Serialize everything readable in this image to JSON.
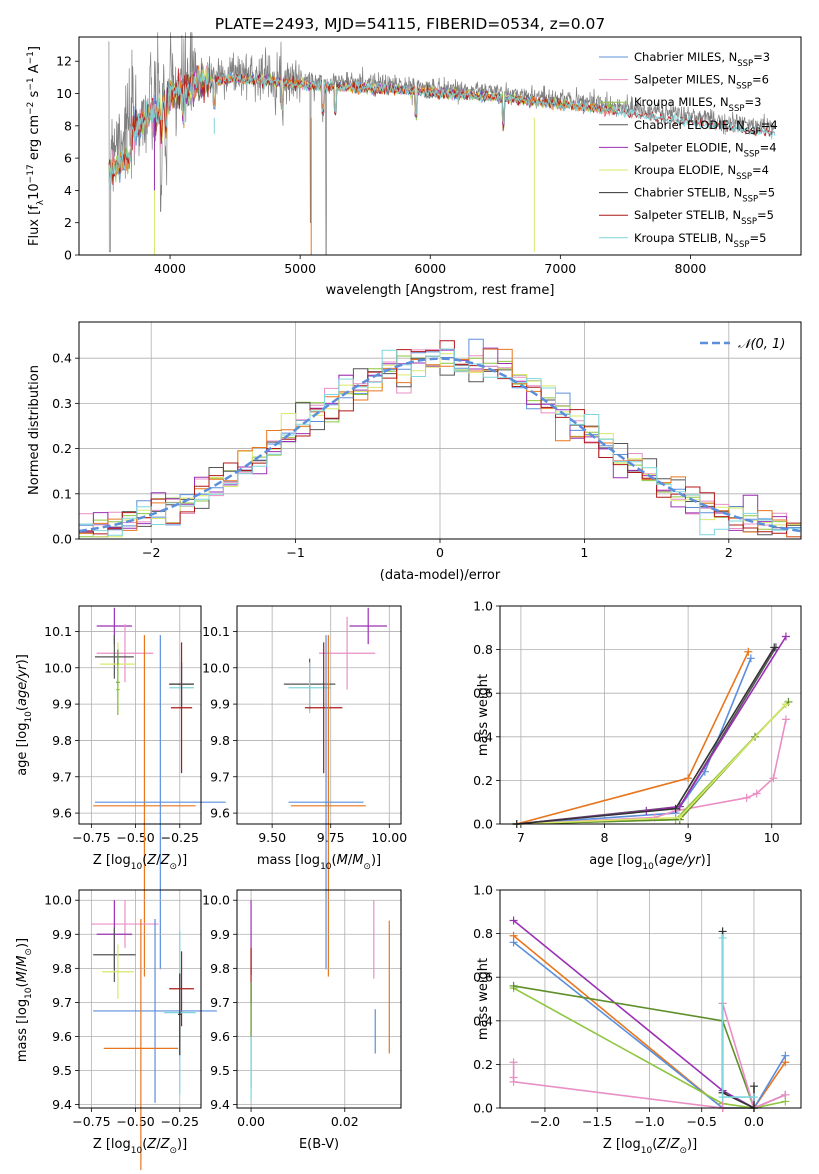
{
  "title": "PLATE=2493, MJD=54115, FIBERID=0534, z=0.07",
  "colors": {
    "chabrier_miles": "#5b8fdc",
    "salpeter_miles": "#e98fc4",
    "kroupa_miles": "#8ec63f",
    "chabrier_elodie": "#555555",
    "salpeter_elodie": "#9b30b5",
    "kroupa_elodie": "#d9e86a",
    "chabrier_stelib": "#333333",
    "salpeter_stelib": "#b01818",
    "kroupa_stelib": "#7fd6dc",
    "orange": "#e8761e",
    "dark_green": "#5f8f2b",
    "spectrum": "#808080"
  },
  "chart_data": [
    {
      "id": "spectrum",
      "type": "line",
      "title": "PLATE=2493, MJD=54115, FIBERID=0534, z=0.07",
      "xlabel": "wavelength [Angstrom, rest frame]",
      "ylabel": "Flux [fλ10⁻¹⁷ erg cm⁻² s⁻¹ A⁻¹]",
      "xlim": [
        3300,
        8850
      ],
      "ylim": [
        0,
        13.5
      ],
      "xticks": [
        4000,
        5000,
        6000,
        7000,
        8000
      ],
      "yticks": [
        0,
        2,
        4,
        6,
        8,
        10,
        12
      ],
      "grid": false,
      "legend": "top-right",
      "data_envelope": {
        "x": [
          3530,
          3800,
          4000,
          4200,
          4500,
          4800,
          5100,
          5500,
          6000,
          6500,
          7000,
          7300,
          7400,
          7700,
          8000,
          8400,
          8650
        ],
        "y": [
          7.0,
          8.6,
          10.2,
          10.9,
          11.3,
          11.1,
          10.8,
          10.7,
          10.4,
          10.1,
          9.7,
          9.4,
          9.3,
          8.9,
          8.6,
          8.1,
          7.9
        ]
      },
      "series": [
        {
          "name": "Chabrier MILES, N",
          "sub": "SSP",
          "suffix": "=3"
        },
        {
          "name": "Salpeter MILES, N",
          "sub": "SSP",
          "suffix": "=6"
        },
        {
          "name": "Kroupa MILES, N",
          "sub": "SSP",
          "suffix": "=3"
        },
        {
          "name": "Chabrier ELODIE, N",
          "sub": "SSP",
          "suffix": "=4"
        },
        {
          "name": "Salpeter ELODIE, N",
          "sub": "SSP",
          "suffix": "=4"
        },
        {
          "name": "Kroupa ELODIE, N",
          "sub": "SSP",
          "suffix": "=4"
        },
        {
          "name": "Chabrier STELIB, N",
          "sub": "SSP",
          "suffix": "=5"
        },
        {
          "name": "Salpeter STELIB, N",
          "sub": "SSP",
          "suffix": "=5"
        },
        {
          "name": "Kroupa STELIB, N",
          "sub": "SSP",
          "suffix": "=5"
        }
      ]
    },
    {
      "id": "residuals",
      "type": "line",
      "xlabel": "(data-model)/error",
      "ylabel": "Normed distribution",
      "xlim": [
        -2.5,
        2.5
      ],
      "ylim": [
        0,
        0.48
      ],
      "xticks": [
        -2,
        -1,
        0,
        1,
        2
      ],
      "yticks": [
        0.0,
        0.1,
        0.2,
        0.3,
        0.4
      ],
      "grid": true,
      "legend": "top-right",
      "gaussian_label": "𝒩(0, 1)"
    },
    {
      "id": "age_vs_z",
      "type": "scatter",
      "xlabel": "Z [log10(Z/Z☉)]",
      "ylabel": "age  [log10(age/yr)]",
      "xlim": [
        -0.82,
        -0.13
      ],
      "ylim": [
        9.57,
        10.17
      ],
      "xticks": [
        -0.75,
        -0.5,
        -0.25
      ],
      "xticklabels": [
        "−0.75",
        "−0.50",
        "−0.25"
      ],
      "yticks": [
        9.6,
        9.7,
        9.8,
        9.9,
        10.0,
        10.1
      ],
      "grid": true,
      "points": [
        {
          "c": "salpeter_elodie",
          "x": -0.62,
          "xe": 0.1,
          "y": 10.115,
          "ye": 0.05
        },
        {
          "c": "salpeter_miles",
          "x": -0.56,
          "xe": 0.16,
          "y": 10.04,
          "ye": 0.08
        },
        {
          "c": "chabrier_elodie",
          "x": -0.62,
          "xe": 0.11,
          "y": 10.03,
          "ye": 0.06
        },
        {
          "c": "kroupa_elodie",
          "x": -0.6,
          "xe": 0.1,
          "y": 10.01,
          "ye": 0.06
        },
        {
          "c": "dark_green",
          "x": -0.6,
          "xe": 0.01,
          "y": 9.96,
          "ye": 0.09
        },
        {
          "c": "kroupa_miles",
          "x": -0.6,
          "xe": 0.01,
          "y": 9.94,
          "ye": 0.07
        },
        {
          "c": "chabrier_stelib",
          "x": -0.24,
          "xe": 0.07,
          "y": 9.955,
          "ye": 0.06
        },
        {
          "c": "kroupa_stelib",
          "x": -0.24,
          "xe": 0.07,
          "y": 9.945,
          "ye": 0.06
        },
        {
          "c": "salpeter_stelib",
          "x": -0.24,
          "xe": 0.06,
          "y": 9.89,
          "ye": 0.18
        },
        {
          "c": "orange",
          "x": -0.45,
          "xe": 0.29,
          "y": 9.62,
          "ye": 0.47
        },
        {
          "c": "chabrier_miles",
          "x": -0.36,
          "xe": 0.37,
          "y": 9.63,
          "ye": 0.46
        }
      ]
    },
    {
      "id": "age_vs_mass",
      "type": "scatter",
      "xlabel": "mass [log10(M/M☉)]",
      "ylabel": "",
      "xlim": [
        9.35,
        10.05
      ],
      "ylim": [
        9.57,
        10.17
      ],
      "xticks": [
        9.5,
        9.75,
        10.0
      ],
      "xticklabels": [
        "9.50",
        "9.75",
        "10.00"
      ],
      "yticks": [
        9.6,
        9.7,
        9.8,
        9.9,
        10.0,
        10.1
      ],
      "grid": true,
      "points": [
        {
          "c": "salpeter_elodie",
          "x": 9.91,
          "xe": 0.08,
          "y": 10.115,
          "ye": 0.05
        },
        {
          "c": "salpeter_miles",
          "x": 9.82,
          "xe": 0.12,
          "y": 10.04,
          "ye": 0.1
        },
        {
          "c": "chabrier_elodie",
          "x": 9.66,
          "xe": 0.11,
          "y": 9.955,
          "ye": 0.07
        },
        {
          "c": "kroupa_stelib",
          "x": 9.66,
          "xe": 0.09,
          "y": 9.945,
          "ye": 0.07
        },
        {
          "c": "salpeter_stelib",
          "x": 9.72,
          "xe": 0.08,
          "y": 9.89,
          "ye": 0.18
        },
        {
          "c": "orange",
          "x": 9.74,
          "xe": 0.16,
          "y": 9.62,
          "ye": 0.47
        },
        {
          "c": "chabrier_miles",
          "x": 9.73,
          "xe": 0.16,
          "y": 9.63,
          "ye": 0.46
        }
      ]
    },
    {
      "id": "weight_vs_age",
      "type": "line",
      "xlabel": "age  [log10(age/yr)]",
      "ylabel": "mass weight",
      "xlim": [
        6.75,
        10.35
      ],
      "ylim": [
        0,
        1.0
      ],
      "xticks": [
        7,
        8,
        9,
        10
      ],
      "yticks": [
        0.0,
        0.2,
        0.4,
        0.6,
        0.8,
        1.0
      ],
      "grid": true,
      "series": [
        {
          "c": "chabrier_miles",
          "x": [
            6.95,
            8.85,
            9.2,
            9.75
          ],
          "y": [
            0.0,
            0.05,
            0.24,
            0.76
          ]
        },
        {
          "c": "orange",
          "x": [
            6.95,
            9.0,
            9.72
          ],
          "y": [
            0.0,
            0.21,
            0.79
          ]
        },
        {
          "c": "salpeter_miles",
          "x": [
            6.95,
            8.6,
            8.85,
            9.7,
            9.82,
            10.02,
            10.17
          ],
          "y": [
            0.0,
            0.03,
            0.06,
            0.12,
            0.14,
            0.21,
            0.48
          ]
        },
        {
          "c": "kroupa_miles",
          "x": [
            6.95,
            8.85,
            10.17
          ],
          "y": [
            0.0,
            0.02,
            0.55
          ]
        },
        {
          "c": "dark_green",
          "x": [
            6.95,
            8.9,
            9.8,
            10.2
          ],
          "y": [
            0.0,
            0.02,
            0.4,
            0.56
          ]
        },
        {
          "c": "chabrier_elodie",
          "x": [
            6.95,
            8.9,
            10.05
          ],
          "y": [
            0.0,
            0.08,
            0.81
          ]
        },
        {
          "c": "salpeter_elodie",
          "x": [
            6.95,
            8.5,
            8.9,
            10.17
          ],
          "y": [
            0.0,
            0.06,
            0.08,
            0.86
          ]
        },
        {
          "c": "kroupa_elodie",
          "x": [
            6.95,
            8.9,
            10.17
          ],
          "y": [
            0.0,
            0.03,
            0.55
          ]
        },
        {
          "c": "chabrier_stelib",
          "x": [
            6.95,
            8.85,
            10.03
          ],
          "y": [
            0.0,
            0.07,
            0.81
          ]
        }
      ]
    },
    {
      "id": "mass_vs_z",
      "type": "scatter",
      "xlabel": "Z [log10(Z/Z☉)]",
      "ylabel": "mass [log10(M/M☉)]",
      "xlim": [
        -0.82,
        -0.13
      ],
      "ylim": [
        9.39,
        10.03
      ],
      "xticks": [
        -0.75,
        -0.5,
        -0.25
      ],
      "xticklabels": [
        "−0.75",
        "−0.50",
        "−0.25"
      ],
      "yticks": [
        9.4,
        9.5,
        9.6,
        9.7,
        9.8,
        9.9,
        10.0
      ],
      "grid": true,
      "points": [
        {
          "c": "salpeter_miles",
          "x": -0.56,
          "xe": 0.19,
          "y": 9.93,
          "ye": 0.07
        },
        {
          "c": "salpeter_elodie",
          "x": -0.62,
          "xe": 0.1,
          "y": 9.9,
          "ye": 0.1
        },
        {
          "c": "chabrier_elodie",
          "x": -0.62,
          "xe": 0.12,
          "y": 9.84,
          "ye": 0.08
        },
        {
          "c": "kroupa_elodie",
          "x": -0.6,
          "xe": 0.09,
          "y": 9.79,
          "ye": 0.08
        },
        {
          "c": "salpeter_stelib",
          "x": -0.24,
          "xe": 0.07,
          "y": 9.74,
          "ye": 0.11
        },
        {
          "c": "chabrier_miles",
          "x": -0.39,
          "xe": 0.35,
          "y": 9.675,
          "ye": 0.27
        },
        {
          "c": "kroupa_stelib",
          "x": -0.25,
          "xe": 0.09,
          "y": 9.67,
          "ye": 0.24
        },
        {
          "c": "chabrier_stelib",
          "x": -0.25,
          "xe": 0.01,
          "y": 9.665,
          "ye": 0.12
        },
        {
          "c": "orange",
          "x": -0.47,
          "xe": 0.21,
          "y": 9.565,
          "ye": 0.38
        }
      ]
    },
    {
      "id": "mass_vs_ebv",
      "type": "scatter",
      "xlabel": "E(B-V)",
      "ylabel": "",
      "xlim": [
        -0.003,
        0.032
      ],
      "ylim": [
        9.39,
        10.03
      ],
      "xticks": [
        0.0,
        0.02
      ],
      "xticklabels": [
        "0.00",
        "0.02"
      ],
      "yticks": [
        9.4,
        9.5,
        9.6,
        9.7,
        9.8,
        9.9,
        10.0
      ],
      "grid": true,
      "bars": [
        {
          "c": "salpeter_elodie",
          "x": 0.0,
          "y0": 9.78,
          "y1": 10.0
        },
        {
          "c": "salpeter_stelib",
          "x": 0.0,
          "y0": 9.7,
          "y1": 9.86
        },
        {
          "c": "dark_green",
          "x": 0.0,
          "y0": 9.45,
          "y1": 9.76
        },
        {
          "c": "kroupa_stelib",
          "x": 0.0,
          "y0": 9.41,
          "y1": 9.6
        },
        {
          "c": "salpeter_miles",
          "x": 0.0262,
          "y0": 9.77,
          "y1": 10.0
        },
        {
          "c": "chabrier_miles",
          "x": 0.0265,
          "y0": 9.55,
          "y1": 9.68
        },
        {
          "c": "orange",
          "x": 0.0295,
          "y0": 9.55,
          "y1": 9.94
        }
      ]
    },
    {
      "id": "weight_vs_z",
      "type": "line",
      "xlabel": "Z [log10(Z/Z☉)]",
      "ylabel": "mass weight",
      "xlim": [
        -2.43,
        0.45
      ],
      "ylim": [
        0,
        1.0
      ],
      "xticks": [
        -2.0,
        -1.5,
        -1.0,
        -0.5,
        0.0
      ],
      "xticklabels": [
        "−2.0",
        "−1.5",
        "−1.0",
        "−0.5",
        "0.0"
      ],
      "yticks": [
        0.0,
        0.2,
        0.4,
        0.6,
        0.8,
        1.0
      ],
      "grid": true,
      "series": [
        {
          "c": "salpeter_elodie",
          "x": [
            -2.3,
            -0.3,
            0.0,
            0.3
          ],
          "y": [
            0.86,
            0.08,
            0.0,
            0.06
          ]
        },
        {
          "c": "orange",
          "x": [
            -2.3,
            -0.3,
            0.0,
            0.3
          ],
          "y": [
            0.79,
            0.0,
            0.0,
            0.21
          ]
        },
        {
          "c": "chabrier_miles",
          "x": [
            -2.3,
            -0.3,
            0.0,
            0.3
          ],
          "y": [
            0.76,
            0.0,
            0.0,
            0.24
          ]
        },
        {
          "c": "kroupa_miles",
          "x": [
            -2.3,
            -0.3,
            0.0,
            0.3
          ],
          "y": [
            0.55,
            0.02,
            0.0,
            0.03
          ]
        },
        {
          "c": "dark_green",
          "x": [
            -2.3,
            -0.3,
            0.0
          ],
          "y": [
            0.56,
            0.4,
            0.0
          ]
        },
        {
          "c": "salpeter_miles",
          "x": [
            -2.3,
            -2.3,
            -2.3,
            -0.3,
            -0.3,
            0.0,
            0.3
          ],
          "y": [
            0.21,
            0.14,
            0.12,
            0.0,
            0.48,
            0.0,
            0.06
          ]
        },
        {
          "c": "chabrier_stelib",
          "x": [
            -0.3,
            -0.3,
            0.0,
            0.0
          ],
          "y": [
            0.81,
            0.07,
            0.0,
            0.1
          ]
        },
        {
          "c": "kroupa_stelib",
          "x": [
            -0.3,
            -0.3,
            0.0
          ],
          "y": [
            0.78,
            0.05,
            0.05
          ]
        }
      ]
    }
  ]
}
